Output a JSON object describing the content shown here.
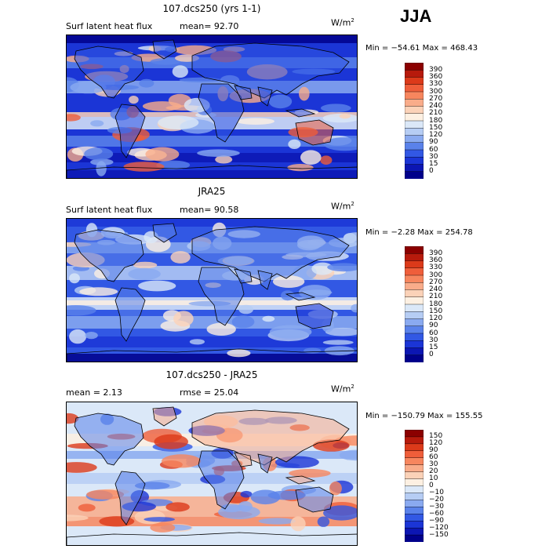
{
  "season": "JJA",
  "panels": [
    {
      "title": "107.dcs250 (yrs 1-1)",
      "left_text": "Surf latent heat flux",
      "middle_text": "mean=  92.70",
      "units": "W/m",
      "units_sup": "2",
      "minmax": "Min = −54.61 Max = 468.43",
      "colorbar_labels": [
        "390",
        "360",
        "330",
        "300",
        "270",
        "240",
        "210",
        "180",
        "150",
        "120",
        "90",
        "60",
        "30",
        "15",
        "0"
      ],
      "colorbar_colors": [
        "#8b0000",
        "#b71a0c",
        "#dc3a1a",
        "#ef5e3a",
        "#f7865e",
        "#f9ac8a",
        "#fbd2b8",
        "#fdf0e2",
        "#dbe8f8",
        "#b6cdf4",
        "#8aaaf0",
        "#5a82ea",
        "#3258e4",
        "#1b35d6",
        "#0c16b3",
        "#00008b"
      ],
      "map_style": "high"
    },
    {
      "title": "JRA25",
      "left_text": "Surf latent heat flux",
      "middle_text": "mean=  90.58",
      "units": "W/m",
      "units_sup": "2",
      "minmax": "Min =  −2.28 Max = 254.78",
      "colorbar_labels": [
        "390",
        "360",
        "330",
        "300",
        "270",
        "240",
        "210",
        "180",
        "150",
        "120",
        "90",
        "60",
        "30",
        "15",
        "0"
      ],
      "colorbar_colors": [
        "#8b0000",
        "#b71a0c",
        "#dc3a1a",
        "#ef5e3a",
        "#f7865e",
        "#f9ac8a",
        "#fbd2b8",
        "#fdf0e2",
        "#dbe8f8",
        "#b6cdf4",
        "#8aaaf0",
        "#5a82ea",
        "#3258e4",
        "#1b35d6",
        "#0c16b3",
        "#00008b"
      ],
      "map_style": "mid"
    },
    {
      "title": "107.dcs250 - JRA25",
      "left_text": "mean =    2.13",
      "middle_text": "rmse =   25.04",
      "units": "W/m",
      "units_sup": "2",
      "minmax": "Min = −150.79 Max = 155.55",
      "colorbar_labels": [
        "150",
        "120",
        "90",
        "60",
        "30",
        "20",
        "10",
        "0",
        "−10",
        "−20",
        "−30",
        "−60",
        "−90",
        "−120",
        "−150"
      ],
      "colorbar_colors": [
        "#8b0000",
        "#b71a0c",
        "#dc3a1a",
        "#ef5e3a",
        "#f7865e",
        "#f9ac8a",
        "#fbd2b8",
        "#fdf0e2",
        "#dbe8f8",
        "#b6cdf4",
        "#8aaaf0",
        "#5a82ea",
        "#3258e4",
        "#1b35d6",
        "#0c16b3",
        "#00008b"
      ],
      "map_style": "diff"
    }
  ],
  "chart_data": [
    {
      "type": "heatmap",
      "title": "107.dcs250 (yrs 1-1)",
      "variable": "Surf latent heat flux",
      "units": "W/m2",
      "mean": 92.7,
      "min": -54.61,
      "max": 468.43,
      "levels": [
        0,
        15,
        30,
        60,
        90,
        120,
        150,
        180,
        210,
        240,
        270,
        300,
        330,
        360,
        390
      ]
    },
    {
      "type": "heatmap",
      "title": "JRA25",
      "variable": "Surf latent heat flux",
      "units": "W/m2",
      "mean": 90.58,
      "min": -2.28,
      "max": 254.78,
      "levels": [
        0,
        15,
        30,
        60,
        90,
        120,
        150,
        180,
        210,
        240,
        270,
        300,
        330,
        360,
        390
      ]
    },
    {
      "type": "heatmap",
      "title": "107.dcs250 - JRA25",
      "units": "W/m2",
      "mean": 2.13,
      "rmse": 25.04,
      "min": -150.79,
      "max": 155.55,
      "levels": [
        -150,
        -120,
        -90,
        -60,
        -30,
        -20,
        -10,
        0,
        10,
        20,
        30,
        60,
        90,
        120,
        150
      ]
    }
  ]
}
